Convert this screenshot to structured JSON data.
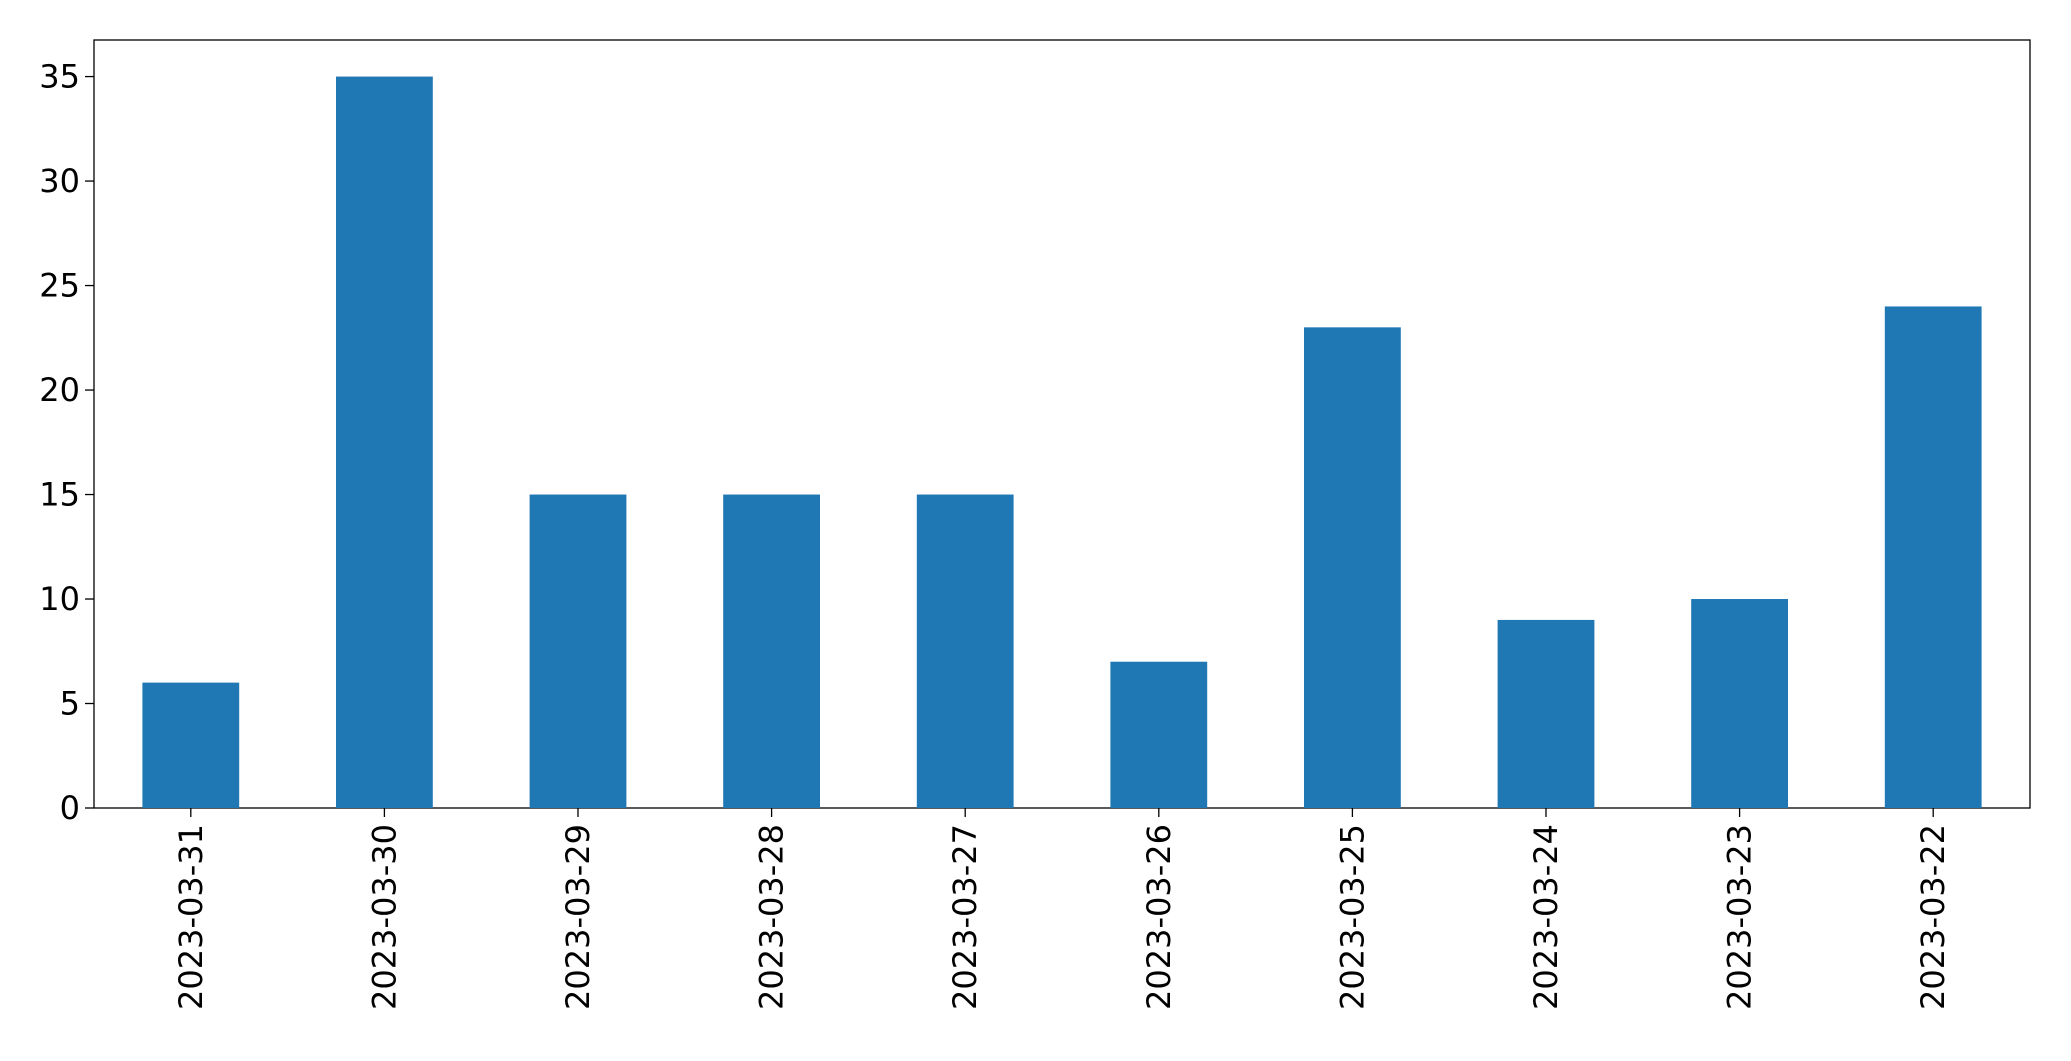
{
  "chart_data": {
    "type": "bar",
    "categories": [
      "2023-03-31",
      "2023-03-30",
      "2023-03-29",
      "2023-03-28",
      "2023-03-27",
      "2023-03-26",
      "2023-03-25",
      "2023-03-24",
      "2023-03-23",
      "2023-03-22"
    ],
    "values": [
      6,
      35,
      15,
      15,
      15,
      7,
      23,
      9,
      10,
      24
    ],
    "color": "#1f77b4",
    "ylim": [
      0,
      36.75
    ],
    "yticks": [
      0,
      5,
      10,
      15,
      20,
      25,
      30,
      35
    ],
    "grid": false
  }
}
